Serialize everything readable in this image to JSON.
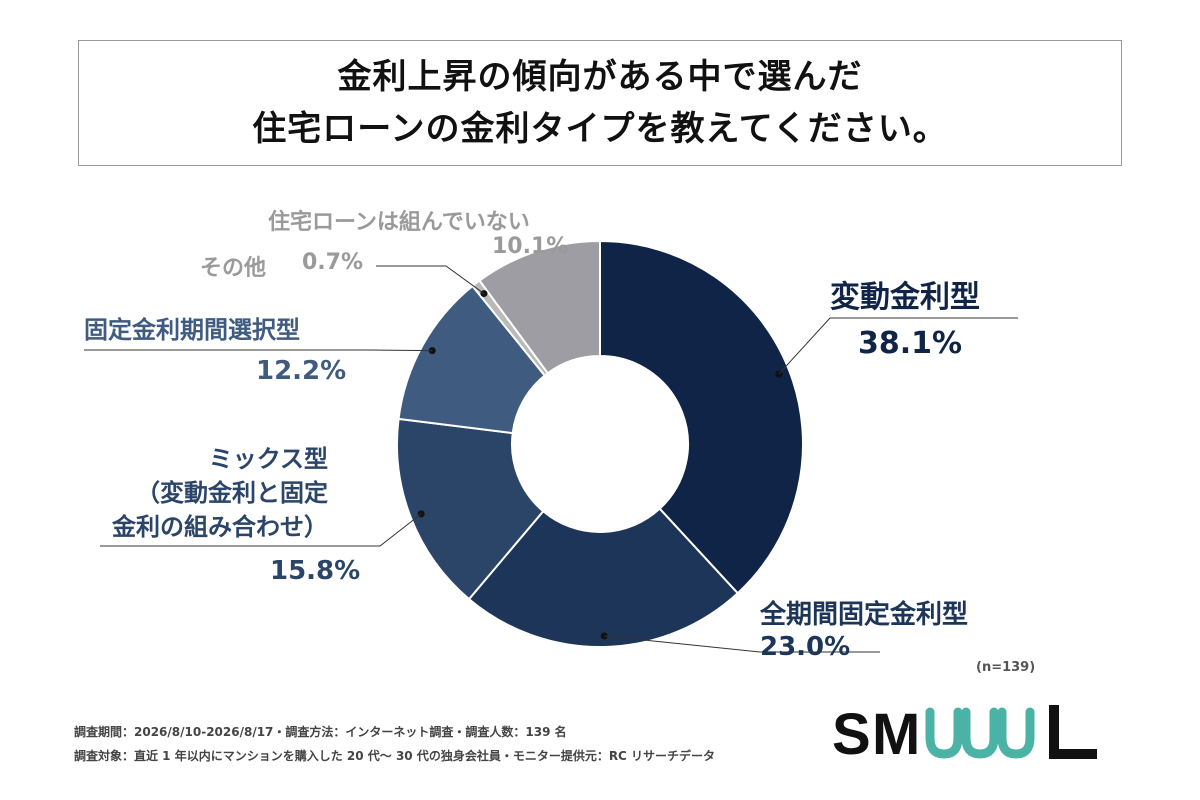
{
  "title": {
    "line1": "金利上昇の傾向がある中で選んだ",
    "line2": "住宅ローンの金利タイプを教えてください。"
  },
  "chart_data": {
    "type": "pie",
    "style": "donut",
    "unit": "%",
    "slices": [
      {
        "label": "変動金利型",
        "label_lines": [
          "変動金利型"
        ],
        "value": 38.1,
        "display": "38.1%",
        "color": "#0f2447"
      },
      {
        "label": "全期間固定金利型",
        "label_lines": [
          "全期間固定金利型"
        ],
        "value": 23.0,
        "display": "23.0%",
        "color": "#1c3558"
      },
      {
        "label": "ミックス型（変動金利と固定金利の組み合わせ）",
        "label_lines": [
          "ミックス型",
          "（変動金利と固定",
          "金利の組み合わせ）"
        ],
        "value": 15.8,
        "display": "15.8%",
        "color": "#2b4569"
      },
      {
        "label": "固定金利期間選択型",
        "label_lines": [
          "固定金利期間選択型"
        ],
        "value": 12.2,
        "display": "12.2%",
        "color": "#3f5b80"
      },
      {
        "label": "その他",
        "label_lines": [
          "その他"
        ],
        "value": 0.7,
        "display": "0.7%",
        "color": "#b9b9b9"
      },
      {
        "label": "住宅ローンは組んでいない",
        "label_lines": [
          "住宅ローンは組んでいない"
        ],
        "value": 10.1,
        "display": "10.1%",
        "color": "#9d9da3"
      }
    ],
    "sample_size": "(n=139)"
  },
  "footer": {
    "line1": "調査期間：2026/8/10-2026/8/17・調査方法：インターネット調査・調査人数：139 名",
    "line2": "調査対象：直近 1 年以内にマンションを購入した 20 代〜 30 代の独身会社員・モニター提供元：RC リサーチデータ"
  },
  "logo": {
    "text": "SMUUL",
    "color_dark": "#111111",
    "color_accent": "#4bb3a6"
  }
}
